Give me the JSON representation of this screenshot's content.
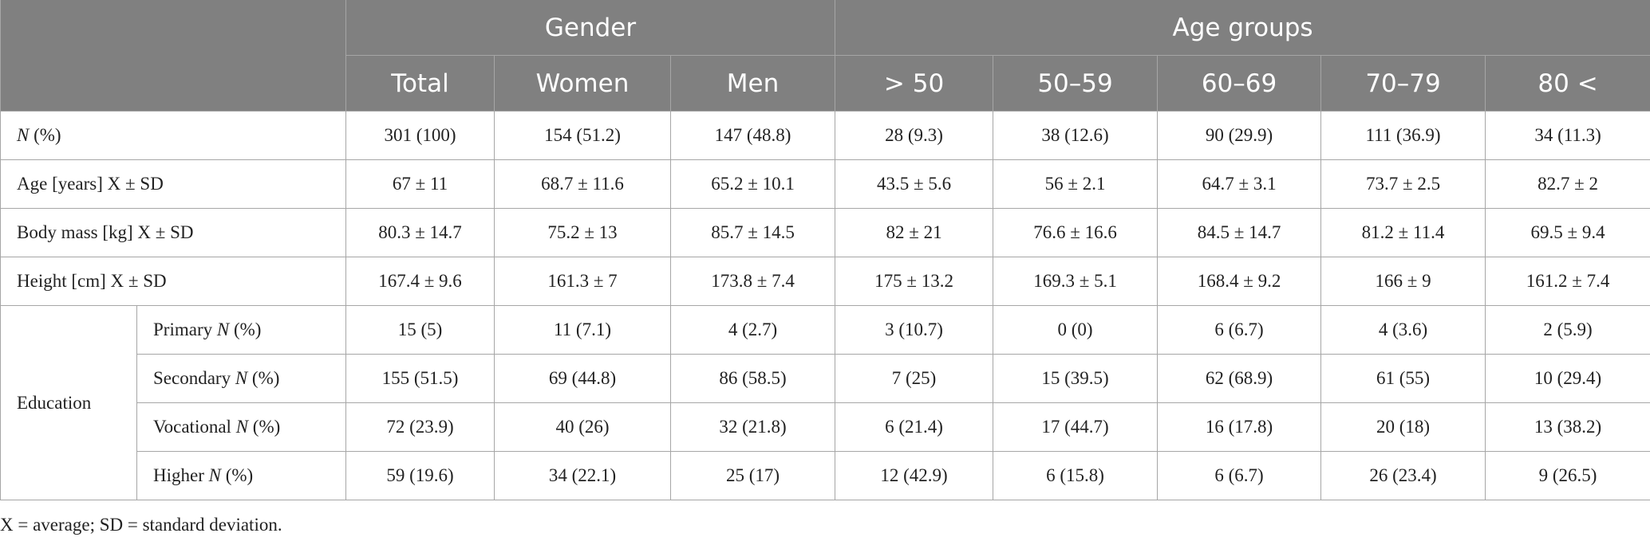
{
  "table": {
    "header": {
      "groups": [
        {
          "text": "Gender",
          "span": 3
        },
        {
          "text": "Age groups",
          "span": 5
        }
      ],
      "columns": [
        "Total",
        "Women",
        "Men",
        "> 50",
        "50–59",
        "60–69",
        "70–79",
        "80 <"
      ]
    },
    "rows": [
      {
        "label": [
          {
            "text": "N",
            "italic": true
          },
          {
            "text": " (%)"
          }
        ],
        "cells": [
          "301 (100)",
          "154 (51.2)",
          "147 (48.8)",
          "28 (9.3)",
          "38 (12.6)",
          "90 (29.9)",
          "111 (36.9)",
          "34 (11.3)"
        ]
      },
      {
        "label": [
          {
            "text": "Age [years] X ± SD"
          }
        ],
        "cells": [
          "67 ± 11",
          "68.7 ± 11.6",
          "65.2 ± 10.1",
          "43.5 ± 5.6",
          "56 ± 2.1",
          "64.7 ± 3.1",
          "73.7 ± 2.5",
          "82.7 ± 2"
        ]
      },
      {
        "label": [
          {
            "text": "Body mass [kg] X ± SD"
          }
        ],
        "cells": [
          "80.3 ± 14.7",
          "75.2 ± 13",
          "85.7 ± 14.5",
          "82 ± 21",
          "76.6 ± 16.6",
          "84.5 ± 14.7",
          "81.2 ± 11.4",
          "69.5 ± 9.4"
        ]
      },
      {
        "label": [
          {
            "text": "Height [cm] X ± SD"
          }
        ],
        "cells": [
          "167.4 ± 9.6",
          "161.3 ± 7",
          "173.8 ± 7.4",
          "175 ± 13.2",
          "169.3 ± 5.1",
          "168.4 ± 9.2",
          "166 ± 9",
          "161.2 ± 7.4"
        ]
      }
    ],
    "group": {
      "label": "Education",
      "rows": [
        {
          "label": [
            {
              "text": "Primary "
            },
            {
              "text": "N",
              "italic": true
            },
            {
              "text": " (%)"
            }
          ],
          "cells": [
            "15 (5)",
            "11 (7.1)",
            "4 (2.7)",
            "3 (10.7)",
            "0 (0)",
            "6 (6.7)",
            "4 (3.6)",
            "2 (5.9)"
          ]
        },
        {
          "label": [
            {
              "text": "Secondary "
            },
            {
              "text": "N",
              "italic": true
            },
            {
              "text": " (%)"
            }
          ],
          "cells": [
            "155 (51.5)",
            "69 (44.8)",
            "86 (58.5)",
            "7 (25)",
            "15 (39.5)",
            "62 (68.9)",
            "61 (55)",
            "10 (29.4)"
          ]
        },
        {
          "label": [
            {
              "text": "Vocational "
            },
            {
              "text": "N",
              "italic": true
            },
            {
              "text": " (%)"
            }
          ],
          "cells": [
            "72 (23.9)",
            "40 (26)",
            "32 (21.8)",
            "6 (21.4)",
            "17 (44.7)",
            "16 (17.8)",
            "20 (18)",
            "13 (38.2)"
          ]
        },
        {
          "label": [
            {
              "text": "Higher "
            },
            {
              "text": "N",
              "italic": true
            },
            {
              "text": " (%)"
            }
          ],
          "cells": [
            "59 (19.6)",
            "34 (22.1)",
            "25 (17)",
            "12 (42.9)",
            "6 (15.8)",
            "6 (6.7)",
            "26 (23.4)",
            "9 (26.5)"
          ]
        }
      ]
    }
  },
  "footnote": "X = average; SD = standard deviation."
}
